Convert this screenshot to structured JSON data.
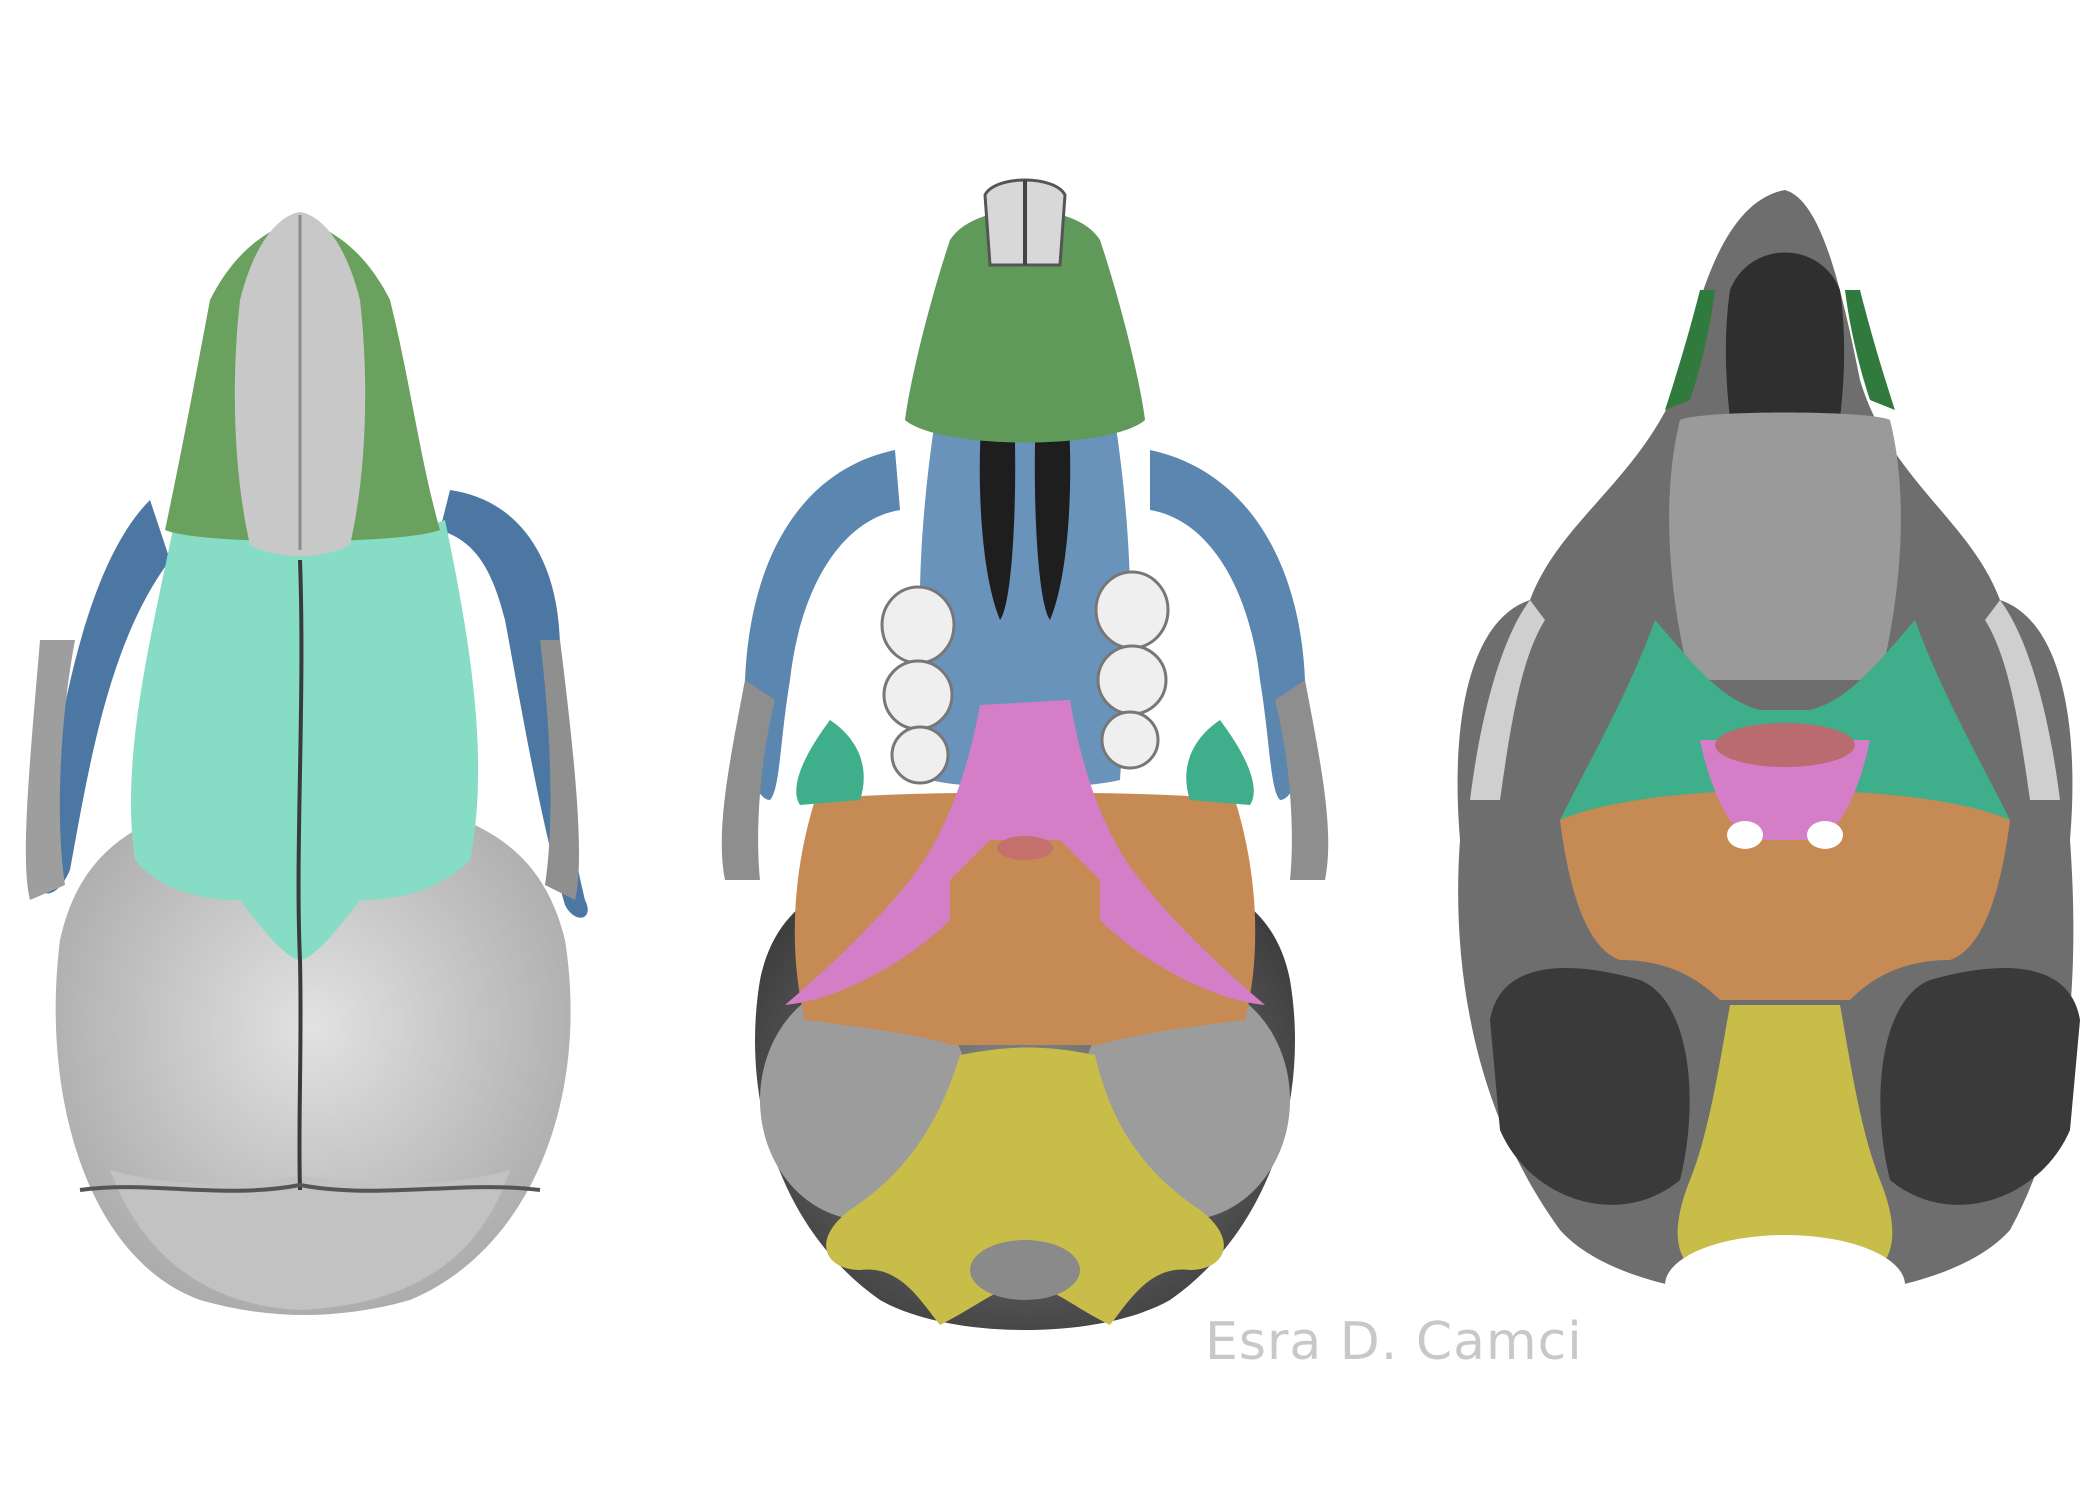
{
  "credit": "Esra D. Camci",
  "colors": {
    "background": "#ffffff",
    "bone_light": "#d4d4d4",
    "bone_mid": "#9a9a9a",
    "bone_dark": "#3c3c3c",
    "nasal_premaxilla_green": "#5f9a5a",
    "frontal_cyan": "#86dcc4",
    "maxilla_blue": "#5b86b0",
    "sphenoid_teal": "#3fae8a",
    "palatine_pink": "#d57ec8",
    "basisphenoid_orange": "#c68a55",
    "occipital_yellow": "#c9bd4a",
    "vomer_red": "#c4706c",
    "molar_white": "#efefef"
  },
  "views": [
    {
      "id": "dorsal",
      "icon": "dorsal-skull-icon"
    },
    {
      "id": "ventral",
      "icon": "ventral-skull-icon"
    },
    {
      "id": "interior",
      "icon": "interior-skull-section-icon"
    }
  ]
}
